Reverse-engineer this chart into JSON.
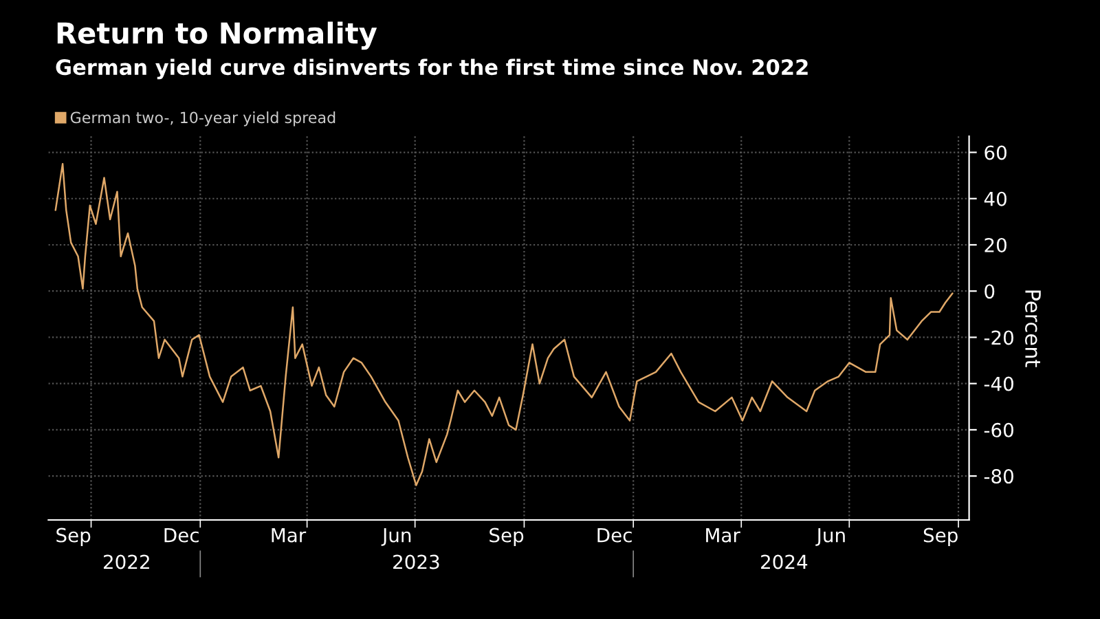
{
  "chart_data": {
    "type": "line",
    "title": "Return to Normality",
    "subtitle": "German yield curve disinverts for the first time since Nov. 2022",
    "ylabel": "Percent",
    "x": [
      "2022-09-01",
      "2022-09-07",
      "2022-09-10",
      "2022-09-14",
      "2022-09-20",
      "2022-09-24",
      "2022-09-26",
      "2022-09-30",
      "2022-10-05",
      "2022-10-12",
      "2022-10-17",
      "2022-10-23",
      "2022-10-26",
      "2022-11-01",
      "2022-11-07",
      "2022-11-09",
      "2022-11-13",
      "2022-11-23",
      "2022-11-27",
      "2022-12-02",
      "2022-12-14",
      "2022-12-17",
      "2022-12-25",
      "2022-12-31",
      "2023-01-09",
      "2023-01-20",
      "2023-01-27",
      "2023-02-06",
      "2023-02-12",
      "2023-02-21",
      "2023-03-01",
      "2023-03-08",
      "2023-03-14",
      "2023-03-20",
      "2023-03-22",
      "2023-03-28",
      "2023-04-05",
      "2023-04-11",
      "2023-04-17",
      "2023-04-24",
      "2023-05-02",
      "2023-05-10",
      "2023-05-17",
      "2023-05-25",
      "2023-06-06",
      "2023-06-17",
      "2023-06-25",
      "2023-07-02",
      "2023-07-07",
      "2023-07-13",
      "2023-07-19",
      "2023-07-28",
      "2023-07-31",
      "2023-08-06",
      "2023-08-12",
      "2023-08-20",
      "2023-08-29",
      "2023-09-04",
      "2023-09-10",
      "2023-09-18",
      "2023-09-24",
      "2023-09-30",
      "2023-10-08",
      "2023-10-14",
      "2023-10-21",
      "2023-10-26",
      "2023-11-04",
      "2023-11-12",
      "2023-11-27",
      "2023-12-09",
      "2023-12-20",
      "2023-12-29",
      "2024-01-04",
      "2024-01-20",
      "2024-02-02",
      "2024-02-10",
      "2024-02-25",
      "2024-03-10",
      "2024-03-24",
      "2024-04-02",
      "2024-04-10",
      "2024-04-17",
      "2024-04-27",
      "2024-05-10",
      "2024-05-26",
      "2024-06-02",
      "2024-06-13",
      "2024-06-22",
      "2024-07-01",
      "2024-07-15",
      "2024-07-23",
      "2024-07-27",
      "2024-08-04",
      "2024-08-05",
      "2024-08-10",
      "2024-08-19",
      "2024-08-31",
      "2024-09-08",
      "2024-09-15",
      "2024-09-20",
      "2024-09-26"
    ],
    "series": [
      {
        "name": "German two-, 10-year yield spread",
        "color": "#e0a868",
        "values": [
          35,
          55,
          35,
          21,
          15,
          1,
          15,
          37,
          29,
          49,
          31,
          43,
          15,
          25,
          11,
          1,
          -7,
          -13,
          -29,
          -21,
          -29,
          -37,
          -21,
          -19,
          -37,
          -48,
          -37,
          -33,
          -43,
          -41,
          -52,
          -72,
          -37,
          -7,
          -29,
          -23,
          -41,
          -33,
          -45,
          -50,
          -35,
          -29,
          -31,
          -37,
          -48,
          -56,
          -72,
          -84,
          -78,
          -64,
          -74,
          -62,
          -56,
          -43,
          -48,
          -43,
          -48,
          -54,
          -46,
          -58,
          -60,
          -45,
          -23,
          -40,
          -29,
          -25,
          -21,
          -37,
          -46,
          -35,
          -50,
          -56,
          -39,
          -35,
          -27,
          -35,
          -48,
          -52,
          -46,
          -56,
          -46,
          -52,
          -39,
          -46,
          -52,
          -43,
          -39,
          -37,
          -31,
          -35,
          -35,
          -23,
          -19,
          -3,
          -17,
          -21,
          -13,
          -9,
          -9,
          -5,
          -1
        ]
      }
    ],
    "xlim": [
      "2022-08-26",
      "2024-10-10"
    ],
    "xticks": [
      {
        "value": "2022-09-16",
        "label": "Sep"
      },
      {
        "value": "2022-10-01",
        "label": null
      },
      {
        "value": "2022-12-16",
        "label": "Dec"
      },
      {
        "value": "2023-01-01",
        "label": null
      },
      {
        "value": "2023-03-16",
        "label": "Mar"
      },
      {
        "value": "2023-04-01",
        "label": null
      },
      {
        "value": "2023-06-16",
        "label": "Jun"
      },
      {
        "value": "2023-07-01",
        "label": null
      },
      {
        "value": "2023-09-16",
        "label": "Sep"
      },
      {
        "value": "2023-10-01",
        "label": null
      },
      {
        "value": "2023-12-16",
        "label": "Dec"
      },
      {
        "value": "2024-01-01",
        "label": null
      },
      {
        "value": "2024-03-16",
        "label": "Mar"
      },
      {
        "value": "2024-04-01",
        "label": null
      },
      {
        "value": "2024-06-16",
        "label": "Jun"
      },
      {
        "value": "2024-07-01",
        "label": null
      },
      {
        "value": "2024-09-16",
        "label": "Sep"
      },
      {
        "value": "2024-10-01",
        "label": null
      }
    ],
    "x2lim": [
      "2022-08-26",
      "2024-10-10"
    ],
    "x2ticks": [
      {
        "value": "2022-10-31",
        "label": "2022"
      },
      {
        "value": "2023-01-01",
        "label": null
      },
      {
        "value": "2023-07-02",
        "label": "2023"
      },
      {
        "value": "2024-01-01",
        "label": null
      },
      {
        "value": "2024-05-07",
        "label": "2024"
      }
    ],
    "ylim": [
      -99,
      67
    ],
    "yticks": [
      -80,
      -60,
      -40,
      -20,
      0,
      20,
      40,
      60
    ],
    "grid": true,
    "legend": "top left",
    "line_style": "solid",
    "marker": "none"
  }
}
